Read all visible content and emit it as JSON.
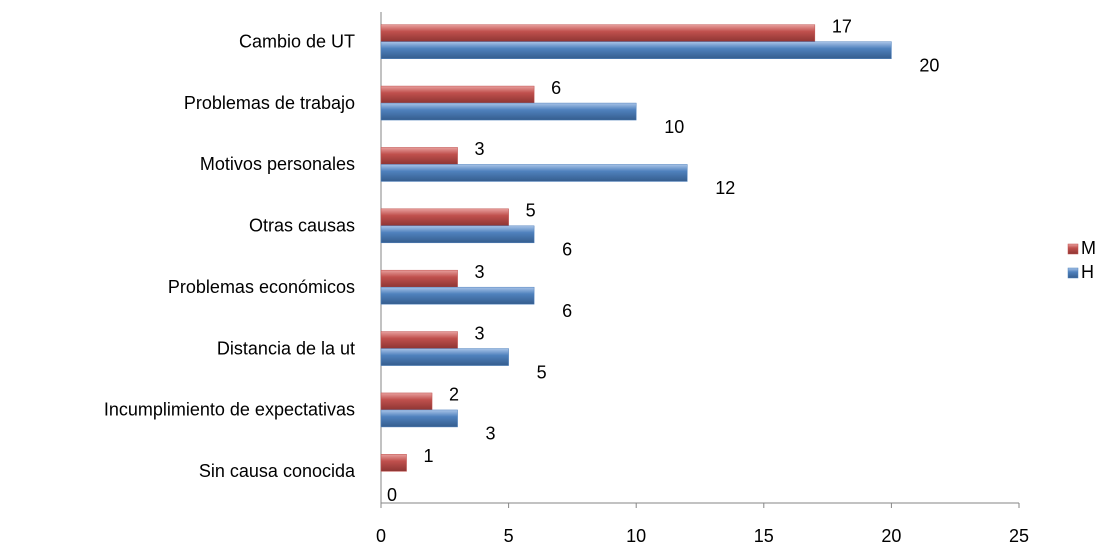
{
  "chart_data": {
    "type": "bar",
    "orientation": "horizontal",
    "categories": [
      "Cambio de UT",
      "Problemas de trabajo",
      "Motivos personales",
      "Otras causas",
      "Problemas económicos",
      "Distancia de la ut",
      "Incumplimiento de expectativas",
      "Sin causa conocida"
    ],
    "series": [
      {
        "name": "M",
        "color": "#c0504d",
        "values": [
          17,
          6,
          3,
          5,
          3,
          3,
          2,
          1
        ]
      },
      {
        "name": "H",
        "color": "#4f81bd",
        "values": [
          20,
          10,
          12,
          6,
          6,
          5,
          3,
          0
        ]
      }
    ],
    "xlim": [
      0,
      25
    ],
    "xticks": [
      0,
      5,
      10,
      15,
      20,
      25
    ],
    "grid": false,
    "legend": "right"
  }
}
